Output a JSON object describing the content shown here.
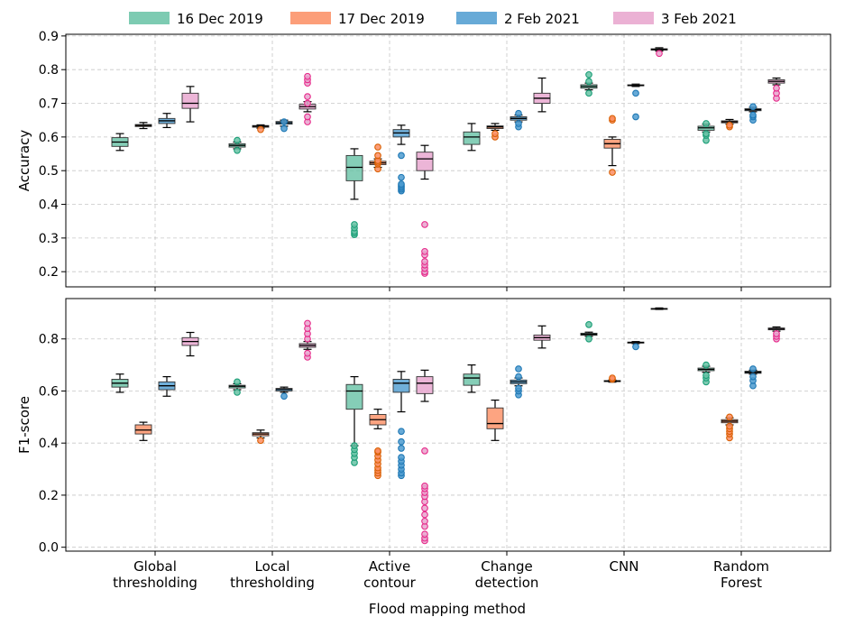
{
  "figure": {
    "xlabel": "Flood mapping method",
    "colors": {
      "16 Dec 2019": "#66c2a5",
      "17 Dec 2019": "#fc8d62",
      "2 Feb 2021": "#4c9bd0",
      "3 Feb 2021": "#e7a3cd"
    },
    "outlier_colors": {
      "16 Dec 2019": "#1b9e77",
      "17 Dec 2019": "#d95f02",
      "2 Feb 2021": "#1f78b4",
      "3 Feb 2021": "#e7298a"
    }
  },
  "chart_data": [
    {
      "type": "box",
      "ylabel": "Accuracy",
      "ylim": [
        0.155,
        0.905
      ],
      "yticks": [
        0.2,
        0.3,
        0.4,
        0.5,
        0.6,
        0.7,
        0.8,
        0.9
      ],
      "grid": true,
      "legend": "top-center",
      "categories": [
        "Global\nthresholding",
        "Local\nthresholding",
        "Active\ncontour",
        "Change\ndetection",
        "CNN",
        "Random\nForest"
      ],
      "series": [
        {
          "name": "16 Dec 2019",
          "boxes": [
            {
              "whislo": 0.56,
              "q1": 0.572,
              "med": 0.585,
              "q3": 0.598,
              "whishi": 0.61,
              "fliers": []
            },
            {
              "whislo": 0.565,
              "q1": 0.57,
              "med": 0.575,
              "q3": 0.58,
              "whishi": 0.585,
              "fliers": [
                0.56,
                0.59
              ]
            },
            {
              "whislo": 0.415,
              "q1": 0.47,
              "med": 0.51,
              "q3": 0.545,
              "whishi": 0.565,
              "fliers": [
                0.31,
                0.315,
                0.32,
                0.33,
                0.34
              ]
            },
            {
              "whislo": 0.56,
              "q1": 0.578,
              "med": 0.6,
              "q3": 0.615,
              "whishi": 0.64,
              "fliers": []
            },
            {
              "whislo": 0.74,
              "q1": 0.745,
              "med": 0.75,
              "q3": 0.755,
              "whishi": 0.76,
              "fliers": [
                0.73,
                0.765,
                0.785
              ]
            },
            {
              "whislo": 0.615,
              "q1": 0.62,
              "med": 0.627,
              "q3": 0.632,
              "whishi": 0.638,
              "fliers": [
                0.59,
                0.605,
                0.61,
                0.64
              ]
            }
          ]
        },
        {
          "name": "17 Dec 2019",
          "boxes": [
            {
              "whislo": 0.625,
              "q1": 0.631,
              "med": 0.634,
              "q3": 0.637,
              "whishi": 0.643,
              "fliers": []
            },
            {
              "whislo": 0.626,
              "q1": 0.629,
              "med": 0.632,
              "q3": 0.634,
              "whishi": 0.636,
              "fliers": [
                0.622
              ]
            },
            {
              "whislo": 0.51,
              "q1": 0.518,
              "med": 0.523,
              "q3": 0.528,
              "whishi": 0.535,
              "fliers": [
                0.505,
                0.52,
                0.525,
                0.53,
                0.545,
                0.57
              ]
            },
            {
              "whislo": 0.62,
              "q1": 0.625,
              "med": 0.63,
              "q3": 0.633,
              "whishi": 0.64,
              "fliers": [
                0.6,
                0.61
              ]
            },
            {
              "whislo": 0.515,
              "q1": 0.567,
              "med": 0.58,
              "q3": 0.593,
              "whishi": 0.6,
              "fliers": [
                0.495,
                0.65,
                0.655
              ]
            },
            {
              "whislo": 0.638,
              "q1": 0.642,
              "med": 0.645,
              "q3": 0.648,
              "whishi": 0.652,
              "fliers": [
                0.63,
                0.635
              ]
            }
          ]
        },
        {
          "name": "2 Feb 2021",
          "boxes": [
            {
              "whislo": 0.628,
              "q1": 0.64,
              "med": 0.648,
              "q3": 0.655,
              "whishi": 0.67,
              "fliers": []
            },
            {
              "whislo": 0.632,
              "q1": 0.638,
              "med": 0.642,
              "q3": 0.646,
              "whishi": 0.65,
              "fliers": [
                0.625,
                0.645
              ]
            },
            {
              "whislo": 0.578,
              "q1": 0.6,
              "med": 0.612,
              "q3": 0.622,
              "whishi": 0.635,
              "fliers": [
                0.44,
                0.445,
                0.45,
                0.455,
                0.46,
                0.48,
                0.545
              ]
            },
            {
              "whislo": 0.645,
              "q1": 0.65,
              "med": 0.655,
              "q3": 0.66,
              "whishi": 0.665,
              "fliers": [
                0.63,
                0.64,
                0.67
              ]
            },
            {
              "whislo": 0.75,
              "q1": 0.752,
              "med": 0.753,
              "q3": 0.755,
              "whishi": 0.757,
              "fliers": [
                0.66,
                0.73
              ]
            },
            {
              "whislo": 0.675,
              "q1": 0.678,
              "med": 0.681,
              "q3": 0.684,
              "whishi": 0.688,
              "fliers": [
                0.65,
                0.66,
                0.665,
                0.69
              ]
            }
          ]
        },
        {
          "name": "3 Feb 2021",
          "boxes": [
            {
              "whislo": 0.645,
              "q1": 0.685,
              "med": 0.7,
              "q3": 0.73,
              "whishi": 0.75,
              "fliers": []
            },
            {
              "whislo": 0.675,
              "q1": 0.683,
              "med": 0.69,
              "q3": 0.697,
              "whishi": 0.705,
              "fliers": [
                0.645,
                0.66,
                0.7,
                0.72,
                0.76,
                0.77,
                0.78
              ]
            },
            {
              "whislo": 0.475,
              "q1": 0.5,
              "med": 0.535,
              "q3": 0.555,
              "whishi": 0.575,
              "fliers": [
                0.195,
                0.2,
                0.21,
                0.22,
                0.23,
                0.25,
                0.26,
                0.34
              ]
            },
            {
              "whislo": 0.675,
              "q1": 0.7,
              "med": 0.715,
              "q3": 0.73,
              "whishi": 0.775,
              "fliers": []
            },
            {
              "whislo": 0.855,
              "q1": 0.858,
              "med": 0.86,
              "q3": 0.862,
              "whishi": 0.865,
              "fliers": [
                0.848
              ]
            },
            {
              "whislo": 0.755,
              "q1": 0.76,
              "med": 0.765,
              "q3": 0.77,
              "whishi": 0.775,
              "fliers": [
                0.715,
                0.73,
                0.745
              ]
            }
          ]
        }
      ]
    },
    {
      "type": "box",
      "ylabel": "F1-score",
      "ylim": [
        -0.015,
        0.955
      ],
      "yticks": [
        0.0,
        0.2,
        0.4,
        0.6,
        0.8
      ],
      "grid": true,
      "categories": [
        "Global\nthresholding",
        "Local\nthresholding",
        "Active\ncontour",
        "Change\ndetection",
        "CNN",
        "Random\nForest"
      ],
      "series": [
        {
          "name": "16 Dec 2019",
          "boxes": [
            {
              "whislo": 0.595,
              "q1": 0.615,
              "med": 0.63,
              "q3": 0.645,
              "whishi": 0.665,
              "fliers": []
            },
            {
              "whislo": 0.605,
              "q1": 0.612,
              "med": 0.618,
              "q3": 0.622,
              "whishi": 0.628,
              "fliers": [
                0.595,
                0.635
              ]
            },
            {
              "whislo": 0.39,
              "q1": 0.53,
              "med": 0.6,
              "q3": 0.625,
              "whishi": 0.655,
              "fliers": [
                0.325,
                0.345,
                0.36,
                0.375,
                0.39
              ]
            },
            {
              "whislo": 0.595,
              "q1": 0.622,
              "med": 0.65,
              "q3": 0.665,
              "whishi": 0.7,
              "fliers": []
            },
            {
              "whislo": 0.81,
              "q1": 0.814,
              "med": 0.818,
              "q3": 0.822,
              "whishi": 0.826,
              "fliers": [
                0.8,
                0.855
              ]
            },
            {
              "whislo": 0.672,
              "q1": 0.678,
              "med": 0.683,
              "q3": 0.688,
              "whishi": 0.695,
              "fliers": [
                0.635,
                0.65,
                0.66,
                0.7
              ]
            }
          ]
        },
        {
          "name": "17 Dec 2019",
          "boxes": [
            {
              "whislo": 0.41,
              "q1": 0.435,
              "med": 0.45,
              "q3": 0.47,
              "whishi": 0.48,
              "fliers": []
            },
            {
              "whislo": 0.42,
              "q1": 0.428,
              "med": 0.435,
              "q3": 0.44,
              "whishi": 0.45,
              "fliers": [
                0.41
              ]
            },
            {
              "whislo": 0.455,
              "q1": 0.47,
              "med": 0.49,
              "q3": 0.51,
              "whishi": 0.53,
              "fliers": [
                0.275,
                0.285,
                0.295,
                0.305,
                0.32,
                0.335,
                0.35,
                0.365,
                0.37
              ]
            },
            {
              "whislo": 0.41,
              "q1": 0.455,
              "med": 0.475,
              "q3": 0.535,
              "whishi": 0.565,
              "fliers": []
            },
            {
              "whislo": 0.634,
              "q1": 0.636,
              "med": 0.638,
              "q3": 0.64,
              "whishi": 0.642,
              "fliers": [
                0.645,
                0.65
              ]
            },
            {
              "whislo": 0.47,
              "q1": 0.478,
              "med": 0.484,
              "q3": 0.49,
              "whishi": 0.497,
              "fliers": [
                0.42,
                0.435,
                0.445,
                0.455,
                0.465,
                0.5
              ]
            }
          ]
        },
        {
          "name": "2 Feb 2021",
          "boxes": [
            {
              "whislo": 0.58,
              "q1": 0.605,
              "med": 0.62,
              "q3": 0.635,
              "whishi": 0.655,
              "fliers": []
            },
            {
              "whislo": 0.595,
              "q1": 0.6,
              "med": 0.606,
              "q3": 0.61,
              "whishi": 0.615,
              "fliers": [
                0.58
              ]
            },
            {
              "whislo": 0.52,
              "q1": 0.595,
              "med": 0.63,
              "q3": 0.645,
              "whishi": 0.675,
              "fliers": [
                0.275,
                0.285,
                0.3,
                0.315,
                0.33,
                0.345,
                0.38,
                0.405,
                0.445
              ]
            },
            {
              "whislo": 0.62,
              "q1": 0.628,
              "med": 0.635,
              "q3": 0.642,
              "whishi": 0.65,
              "fliers": [
                0.585,
                0.6,
                0.61,
                0.655,
                0.685
              ]
            },
            {
              "whislo": 0.782,
              "q1": 0.784,
              "med": 0.786,
              "q3": 0.788,
              "whishi": 0.79,
              "fliers": [
                0.77
              ]
            },
            {
              "whislo": 0.665,
              "q1": 0.668,
              "med": 0.672,
              "q3": 0.676,
              "whishi": 0.68,
              "fliers": [
                0.62,
                0.64,
                0.655,
                0.685
              ]
            }
          ]
        },
        {
          "name": "3 Feb 2021",
          "boxes": [
            {
              "whislo": 0.735,
              "q1": 0.775,
              "med": 0.79,
              "q3": 0.805,
              "whishi": 0.825,
              "fliers": []
            },
            {
              "whislo": 0.76,
              "q1": 0.768,
              "med": 0.775,
              "q3": 0.782,
              "whishi": 0.79,
              "fliers": [
                0.73,
                0.745,
                0.8,
                0.82,
                0.84,
                0.86
              ]
            },
            {
              "whislo": 0.56,
              "q1": 0.59,
              "med": 0.63,
              "q3": 0.655,
              "whishi": 0.68,
              "fliers": [
                0.025,
                0.035,
                0.05,
                0.08,
                0.1,
                0.125,
                0.15,
                0.175,
                0.195,
                0.21,
                0.225,
                0.235,
                0.37
              ]
            },
            {
              "whislo": 0.765,
              "q1": 0.795,
              "med": 0.805,
              "q3": 0.815,
              "whishi": 0.85,
              "fliers": []
            },
            {
              "whislo": 0.913,
              "q1": 0.915,
              "med": 0.916,
              "q3": 0.917,
              "whishi": 0.919,
              "fliers": []
            },
            {
              "whislo": 0.83,
              "q1": 0.835,
              "med": 0.838,
              "q3": 0.842,
              "whishi": 0.846,
              "fliers": [
                0.8,
                0.81,
                0.82
              ]
            }
          ]
        }
      ]
    }
  ]
}
